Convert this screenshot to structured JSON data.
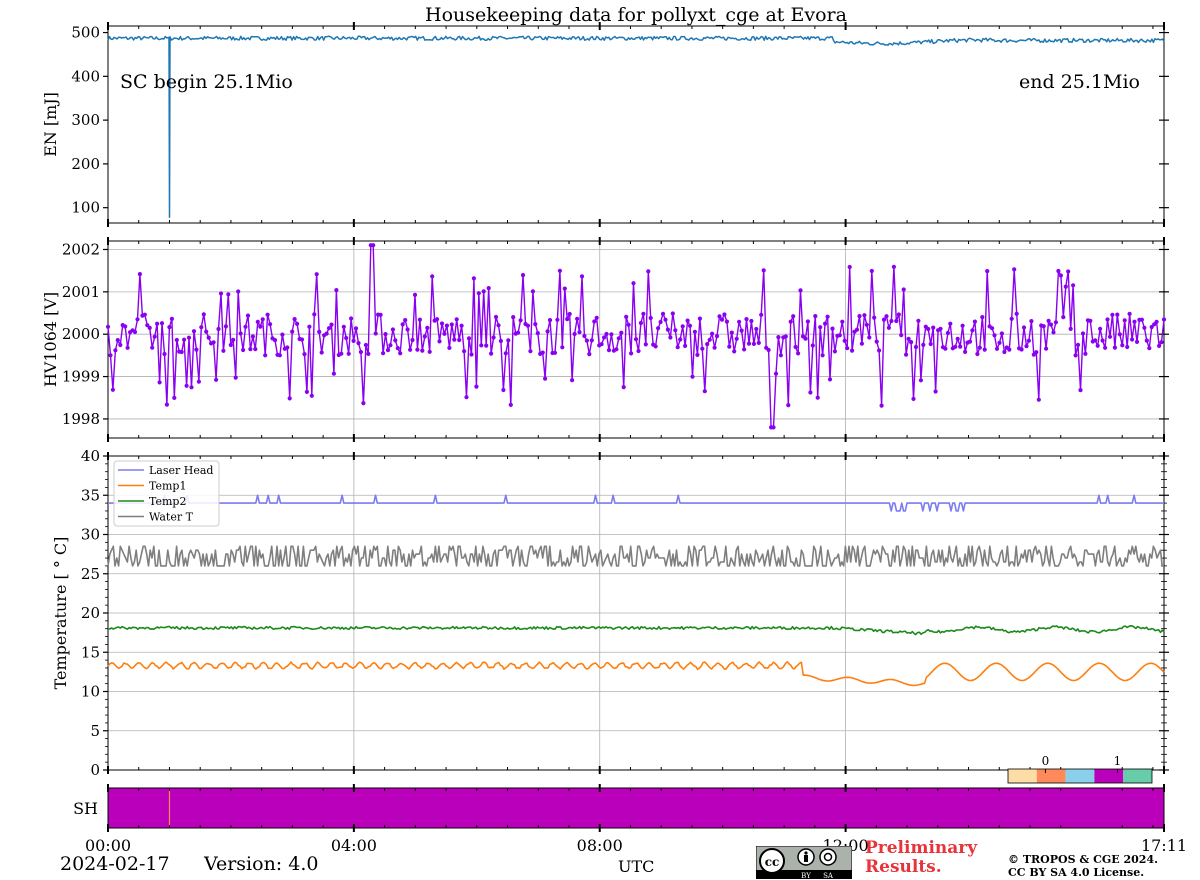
{
  "title": "Housekeeping data for pollyxt_cge at Evora",
  "colors": {
    "energy": "#1f77b4",
    "hv": "#8a00f0",
    "laser_head": "#7b7bf2",
    "temp1": "#ff7f0e",
    "temp2": "#1a8a1a",
    "water_t": "#7f7f7f",
    "shutter": "#bb00bb",
    "grid": "#b0b0b0",
    "preliminary": "#e8333a"
  },
  "chart_data": [
    {
      "id": "energy",
      "type": "line",
      "ylabel": "EN [mJ]",
      "ylim": [
        65,
        515
      ],
      "yticks": [
        100,
        200,
        300,
        400,
        500
      ],
      "ytick_labels": [
        "100",
        "200",
        "300",
        "400",
        "500"
      ],
      "series": [
        {
          "name": "EN",
          "baseline": 487,
          "spikes": [
            {
              "t": 1.0,
              "value": 78
            }
          ]
        }
      ],
      "annotations": {
        "left": "SC begin 25.1Mio",
        "right": "end 25.1Mio"
      }
    },
    {
      "id": "hv",
      "type": "line",
      "ylabel": "HV1064 [V]",
      "ylim": [
        1997.55,
        2002.2
      ],
      "yticks": [
        1998,
        1999,
        2000,
        2001,
        2002
      ],
      "ytick_labels": [
        "1998",
        "1999",
        "2000",
        "2001",
        "2002"
      ],
      "series": [
        {
          "name": "HV1064",
          "baseline": 2000,
          "min": 1997.8,
          "max": 2002.1
        }
      ]
    },
    {
      "id": "temperature",
      "type": "line",
      "ylabel": "Temperature [$^\\circ C$]",
      "ylabel_display": "Temperature [ ° C]",
      "ylim": [
        0,
        40
      ],
      "yticks": [
        0,
        5,
        10,
        15,
        20,
        25,
        30,
        35,
        40
      ],
      "ytick_labels": [
        "0",
        "5",
        "10",
        "15",
        "20",
        "25",
        "30",
        "35",
        "40"
      ],
      "legend_location": "upper-left",
      "series": [
        {
          "name": "Laser Head",
          "baseline": 34
        },
        {
          "name": "Temp1",
          "baseline": 13.3
        },
        {
          "name": "Temp2",
          "baseline": 18.1
        },
        {
          "name": "Water T",
          "baseline": 27
        }
      ]
    },
    {
      "id": "shutter",
      "type": "heatmap",
      "ylabel": "SH",
      "colorbar_ticks": [
        "0",
        "1"
      ],
      "colorbar_colors": [
        "#fddca5",
        "#fe8a5c",
        "#8ad0ea",
        "#bb00bb",
        "#66ccaa"
      ],
      "events": [
        {
          "t": 1.0
        }
      ]
    }
  ],
  "x_axis": {
    "tmax": 17.18,
    "ticks": [
      0,
      4,
      8,
      12,
      17.18
    ],
    "tick_labels": [
      "00:00",
      "04:00",
      "08:00",
      "12:00",
      "17:11"
    ],
    "label": "UTC"
  },
  "footer": {
    "date": "2024-02-17",
    "version": "Version: 4.0",
    "preliminary_line1": "Preliminary",
    "preliminary_line2": "Results.",
    "copyright_line1": "© TROPOS & CGE 2024.",
    "copyright_line2": "CC BY SA 4.0 License.",
    "cc_badge": {
      "icons": [
        "cc-icon",
        "by-icon",
        "sa-icon"
      ],
      "labels": [
        "BY",
        "SA"
      ]
    }
  }
}
